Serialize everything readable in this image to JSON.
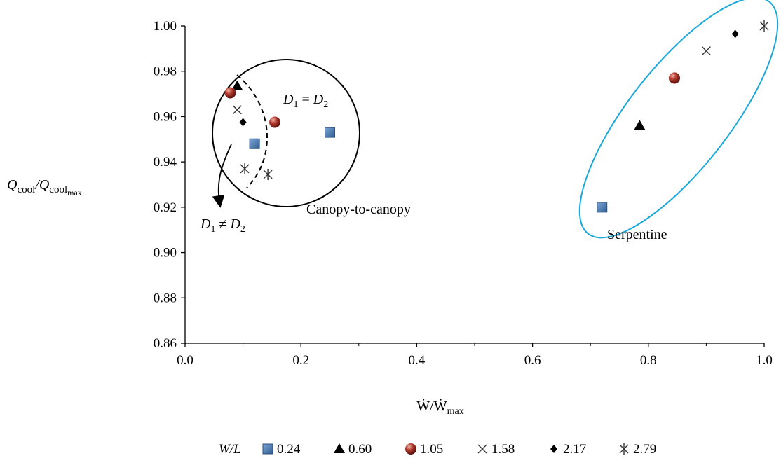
{
  "chart_data": {
    "type": "scatter",
    "xlabel": "Ẇ/Ẇmax",
    "ylabel": "Qcool/Qcoolmax",
    "xlim": [
      0,
      1
    ],
    "ylim": [
      0.86,
      1.0
    ],
    "x_ticks": [
      "0.0",
      "0.2",
      "0.4",
      "0.6",
      "0.8",
      "1.0"
    ],
    "y_ticks": [
      "0.86",
      "0.88",
      "0.90",
      "0.92",
      "0.94",
      "0.96",
      "0.98",
      "1.00"
    ],
    "grid": false,
    "legend_position": "bottom",
    "legend_title": "W/L",
    "series": [
      {
        "name": "0.24",
        "marker": "square",
        "color": "#4f81bd",
        "points": [
          {
            "x": 0.12,
            "y": 0.948
          },
          {
            "x": 0.25,
            "y": 0.953
          },
          {
            "x": 0.72,
            "y": 0.92
          }
        ]
      },
      {
        "name": "0.60",
        "marker": "triangle",
        "color": "#000000",
        "points": [
          {
            "x": 0.09,
            "y": 0.9735
          },
          {
            "x": 0.785,
            "y": 0.956
          }
        ]
      },
      {
        "name": "1.05",
        "marker": "sphere",
        "color": "#a52a2a",
        "points": [
          {
            "x": 0.078,
            "y": 0.9705
          },
          {
            "x": 0.155,
            "y": 0.9575
          },
          {
            "x": 0.845,
            "y": 0.977
          }
        ]
      },
      {
        "name": "1.58",
        "marker": "x",
        "color": "#333333",
        "points": [
          {
            "x": 0.09,
            "y": 0.963
          },
          {
            "x": 0.9,
            "y": 0.989
          }
        ]
      },
      {
        "name": "2.17",
        "marker": "diamond",
        "color": "#000000",
        "points": [
          {
            "x": 0.1,
            "y": 0.9575
          },
          {
            "x": 0.95,
            "y": 0.9965
          }
        ]
      },
      {
        "name": "2.79",
        "marker": "asterisk",
        "color": "#333333",
        "points": [
          {
            "x": 0.103,
            "y": 0.937
          },
          {
            "x": 0.143,
            "y": 0.9345
          },
          {
            "x": 1.0,
            "y": 1.0
          }
        ]
      }
    ],
    "annotations": {
      "canopy_label": "Canopy-to-canopy",
      "serpentine_label": "Serpentine",
      "equal_label": "D1 = D2",
      "unequal_label": "D1 ≠ D2",
      "serpentine_color": "#1aa7dc"
    }
  }
}
